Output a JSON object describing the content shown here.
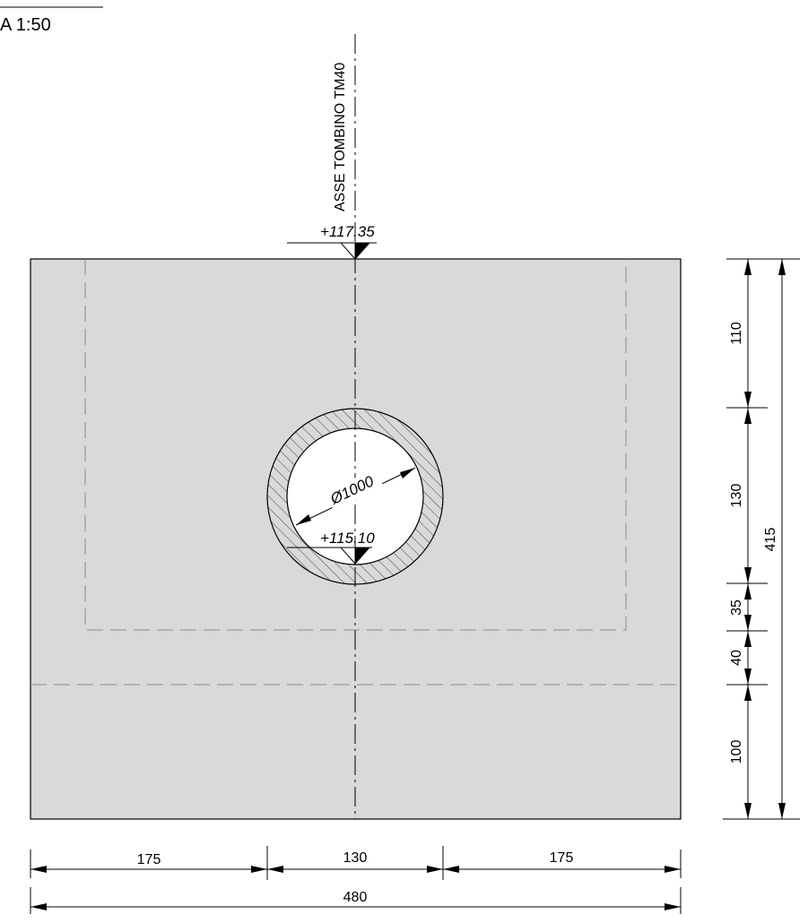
{
  "title": "A 1:50",
  "axis_label": "ASSE TOMBINO  TM40",
  "elevations": {
    "top": "+117.35",
    "invert": "+115.10"
  },
  "diameter_label": "Ø1000",
  "dims": {
    "horizontal": {
      "left": "175",
      "middle": "130",
      "right": "175",
      "total": "480"
    },
    "vertical": {
      "seg1": "110",
      "seg2": "130",
      "seg3": "35",
      "seg4": "40",
      "seg5": "100",
      "total": "415"
    }
  },
  "colors": {
    "block_fill": "#d9d9d9",
    "line": "#000000",
    "hidden": "#8c8c8c"
  }
}
